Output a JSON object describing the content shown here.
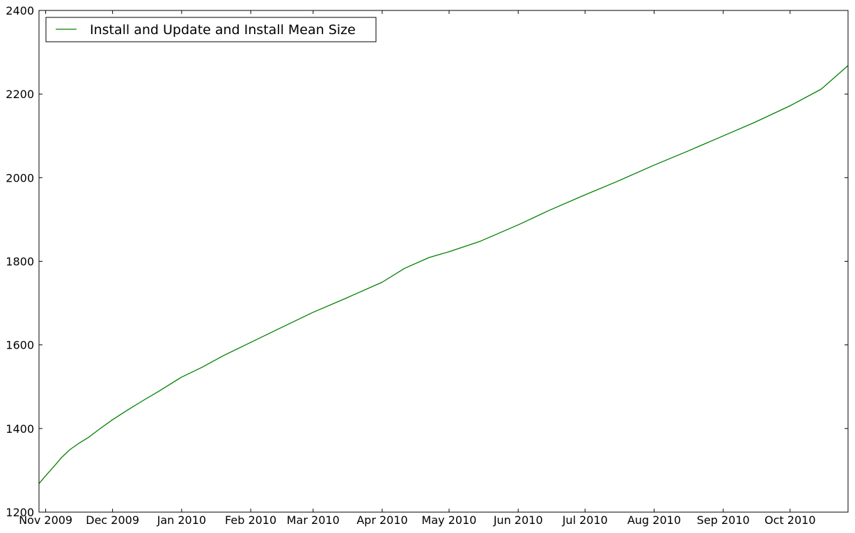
{
  "chart_data": {
    "type": "line",
    "title": "",
    "xlabel": "",
    "ylabel": "",
    "x_range": [
      "2009-10-29",
      "2010-10-27"
    ],
    "ylim": [
      1200,
      2400
    ],
    "y_ticks": [
      1200,
      1400,
      1600,
      1800,
      2000,
      2200,
      2400
    ],
    "x_ticks": [
      {
        "date": "2009-11-01",
        "label": "Nov 2009"
      },
      {
        "date": "2009-12-01",
        "label": "Dec 2009"
      },
      {
        "date": "2010-01-01",
        "label": "Jan 2010"
      },
      {
        "date": "2010-02-01",
        "label": "Feb 2010"
      },
      {
        "date": "2010-03-01",
        "label": "Mar 2010"
      },
      {
        "date": "2010-04-01",
        "label": "Apr 2010"
      },
      {
        "date": "2010-05-01",
        "label": "May 2010"
      },
      {
        "date": "2010-06-01",
        "label": "Jun 2010"
      },
      {
        "date": "2010-07-01",
        "label": "Jul 2010"
      },
      {
        "date": "2010-08-01",
        "label": "Aug 2010"
      },
      {
        "date": "2010-09-01",
        "label": "Sep 2010"
      },
      {
        "date": "2010-10-01",
        "label": "Oct 2010"
      }
    ],
    "grid": false,
    "legend_position": "top-left",
    "series": [
      {
        "name": "Install and Update and Install Mean Size",
        "color": "#008000",
        "points": [
          {
            "x": "2009-10-29",
            "y": 1268
          },
          {
            "x": "2009-11-01",
            "y": 1287
          },
          {
            "x": "2009-11-05",
            "y": 1311
          },
          {
            "x": "2009-11-08",
            "y": 1330
          },
          {
            "x": "2009-11-12",
            "y": 1350
          },
          {
            "x": "2009-11-16",
            "y": 1365
          },
          {
            "x": "2009-11-20",
            "y": 1378
          },
          {
            "x": "2009-11-25",
            "y": 1398
          },
          {
            "x": "2009-12-01",
            "y": 1421
          },
          {
            "x": "2009-12-08",
            "y": 1445
          },
          {
            "x": "2009-12-15",
            "y": 1468
          },
          {
            "x": "2009-12-22",
            "y": 1490
          },
          {
            "x": "2010-01-01",
            "y": 1523
          },
          {
            "x": "2010-01-10",
            "y": 1546
          },
          {
            "x": "2010-01-20",
            "y": 1575
          },
          {
            "x": "2010-02-01",
            "y": 1606
          },
          {
            "x": "2010-02-13",
            "y": 1637
          },
          {
            "x": "2010-02-22",
            "y": 1660
          },
          {
            "x": "2010-03-01",
            "y": 1678
          },
          {
            "x": "2010-03-15",
            "y": 1710
          },
          {
            "x": "2010-04-01",
            "y": 1750
          },
          {
            "x": "2010-04-11",
            "y": 1783
          },
          {
            "x": "2010-04-22",
            "y": 1809
          },
          {
            "x": "2010-05-01",
            "y": 1823
          },
          {
            "x": "2010-05-15",
            "y": 1848
          },
          {
            "x": "2010-06-01",
            "y": 1887
          },
          {
            "x": "2010-06-15",
            "y": 1922
          },
          {
            "x": "2010-07-01",
            "y": 1959
          },
          {
            "x": "2010-07-15",
            "y": 1990
          },
          {
            "x": "2010-08-01",
            "y": 2030
          },
          {
            "x": "2010-08-15",
            "y": 2061
          },
          {
            "x": "2010-09-01",
            "y": 2100
          },
          {
            "x": "2010-09-15",
            "y": 2132
          },
          {
            "x": "2010-10-01",
            "y": 2172
          },
          {
            "x": "2010-10-15",
            "y": 2212
          },
          {
            "x": "2010-10-27",
            "y": 2268
          }
        ]
      }
    ]
  }
}
